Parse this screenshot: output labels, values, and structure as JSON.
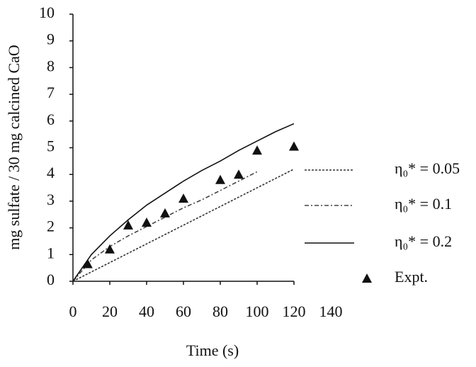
{
  "chart_data": {
    "type": "line",
    "x_label": "Time (s)",
    "y_label": "mg sulfate / 30 mg calcined CaO",
    "x": [
      0,
      10,
      20,
      30,
      40,
      50,
      60,
      70,
      80,
      90,
      100,
      110,
      120
    ],
    "xlim": [
      0,
      140
    ],
    "xticks": [
      0,
      20,
      40,
      60,
      80,
      100,
      120,
      140
    ],
    "ylim": [
      0,
      10
    ],
    "yticks": [
      0,
      1,
      2,
      3,
      4,
      5,
      6,
      7,
      8,
      9,
      10
    ],
    "legend": "right",
    "series": [
      {
        "name": "η₀* = 0.05",
        "color": "#333333",
        "dash": "3,2",
        "values": [
          0,
          0.35,
          0.7,
          1.05,
          1.4,
          1.75,
          2.1,
          2.45,
          2.8,
          3.15,
          3.5,
          3.85,
          4.2
        ]
      },
      {
        "name": "η₀* = 0.1",
        "color": "#444444",
        "dash": "6,3,2,3",
        "values": [
          0,
          0.8,
          1.3,
          1.7,
          2.05,
          2.4,
          2.75,
          3.05,
          3.4,
          3.75,
          4.1,
          null,
          null
        ]
      },
      {
        "name": "η₀* = 0.2",
        "color": "#111111",
        "dash": "none",
        "values": [
          0,
          1.0,
          1.7,
          2.3,
          2.85,
          3.3,
          3.75,
          4.15,
          4.5,
          4.9,
          5.25,
          5.6,
          5.9
        ]
      },
      {
        "name": "Expt.",
        "color": "#111111",
        "marker": "triangle",
        "x": [
          8,
          20,
          30,
          40,
          50,
          60,
          80,
          90,
          100,
          120
        ],
        "values": [
          0.65,
          1.2,
          2.1,
          2.2,
          2.55,
          3.1,
          3.8,
          4.0,
          4.9,
          5.05
        ]
      }
    ]
  }
}
